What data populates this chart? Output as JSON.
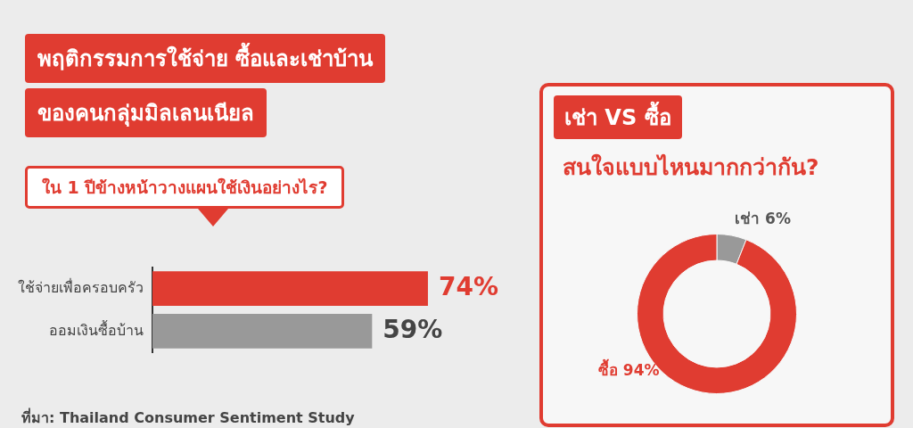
{
  "chart_data": [
    {
      "type": "bar",
      "orientation": "horizontal",
      "title": "พฤติกรรมการใช้จ่าย ซื้อและเช่าบ้าน\nของคนกลุ่มมิลเลนเนียล",
      "subtitle": "ใน 1 ปีข้างหน้าวางแผนใช้เงินอย่างไร?",
      "annotations": [
        "ที่มา: Thailand Consumer Sentiment Study"
      ],
      "categories": [
        "ใช้จ่ายเพื่อครอบครัว",
        "ออมเงินซื้อบ้าน"
      ],
      "values": [
        74,
        59
      ],
      "colors": [
        "#e03c31",
        "#999999"
      ],
      "value_labels": [
        "74%",
        "59%"
      ],
      "tick_labels": "y"
    },
    {
      "type": "donut",
      "title": "เช่า VS ซื้อ",
      "subtitle": "สนใจแบบไหนมากกว่ากัน?",
      "categories": [
        "เช่า",
        "ซื้อ"
      ],
      "values": [
        6,
        94
      ],
      "colors": [
        "#999999",
        "#e03c31"
      ],
      "value_labels": [
        "6%",
        "94%"
      ]
    }
  ]
}
